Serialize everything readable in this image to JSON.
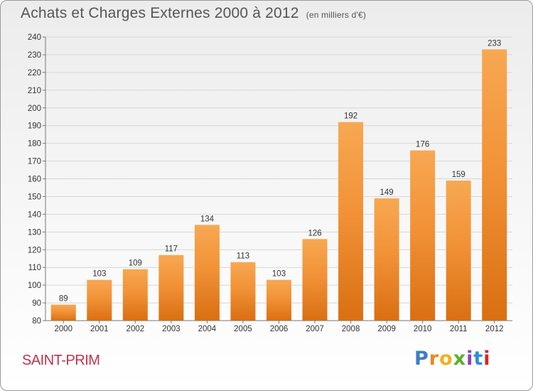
{
  "chart_title": "Achats et Charges Externes 2000 à 2012",
  "chart_unit": "(en milliers d'€)",
  "commune": "SAINT-PRIM",
  "brand": {
    "letters": [
      "P",
      "r",
      "o",
      "x",
      "i",
      "t",
      "i"
    ],
    "colors": [
      "#3d7cc9",
      "#f0851f",
      "#f0b21c",
      "#5bb02c",
      "#8c44b0",
      "#2e8fd1",
      "#d4242c"
    ]
  },
  "colors": {
    "bar_top": "#f7a852",
    "bar_bottom": "#d96f12",
    "bar_mid": "#f29237",
    "grid": "#d6d6d6",
    "text": "#333333",
    "title": "#555555",
    "commune": "#c0334e"
  },
  "chart_data": {
    "type": "bar",
    "title": "Achats et Charges Externes 2000 à 2012",
    "subtitle": "(en milliers d'€)",
    "xlabel": "",
    "ylabel": "",
    "categories": [
      "2000",
      "2001",
      "2002",
      "2003",
      "2004",
      "2005",
      "2006",
      "2007",
      "2008",
      "2009",
      "2010",
      "2011",
      "2012"
    ],
    "values": [
      89,
      103,
      109,
      117,
      134,
      113,
      103,
      126,
      192,
      149,
      176,
      159,
      233
    ],
    "ylim": [
      80,
      240
    ],
    "yticks": [
      80,
      90,
      100,
      110,
      120,
      130,
      140,
      150,
      160,
      170,
      180,
      190,
      200,
      210,
      220,
      230,
      240
    ],
    "grid": true,
    "data_labels": true
  }
}
